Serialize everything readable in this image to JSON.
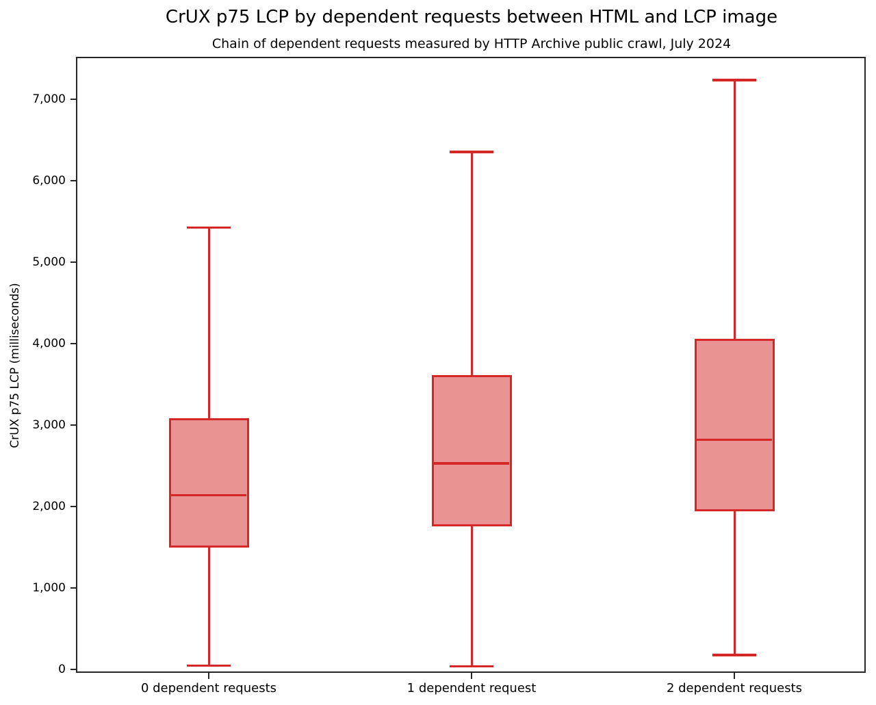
{
  "title": "CrUX p75 LCP by dependent requests between HTML and LCP image",
  "subtitle": "Chain of dependent requests measured by HTTP Archive public crawl, July 2024",
  "chart_data": {
    "type": "boxplot",
    "title": "CrUX p75 LCP by dependent requests between HTML and LCP image",
    "subtitle": "Chain of dependent requests measured by HTTP Archive public crawl, July 2024",
    "xlabel": "",
    "ylabel": "CrUX p75 LCP (milliseconds)",
    "categories": [
      "0 dependent requests",
      "1 dependent request",
      "2 dependent requests"
    ],
    "series": [
      {
        "category": "0 dependent requests",
        "min": 50,
        "q1": 1500,
        "median": 2140,
        "q3": 3080,
        "max": 5420
      },
      {
        "category": "1 dependent request",
        "min": 40,
        "q1": 1760,
        "median": 2530,
        "q3": 3610,
        "max": 6350
      },
      {
        "category": "2 dependent requests",
        "min": 180,
        "q1": 1940,
        "median": 2820,
        "q3": 4060,
        "max": 7230
      }
    ],
    "ylim": [
      -40,
      7500
    ],
    "yticks": [
      0,
      1000,
      2000,
      3000,
      4000,
      5000,
      6000,
      7000
    ],
    "ytick_labels": [
      "0",
      "1,000",
      "2,000",
      "3,000",
      "4,000",
      "5,000",
      "6,000",
      "7,000"
    ],
    "grid": false,
    "legend": "none",
    "colors": {
      "box_line": "#d62728",
      "box_fill": "#ea9393",
      "axis": "#262626",
      "text": "#000000"
    }
  }
}
